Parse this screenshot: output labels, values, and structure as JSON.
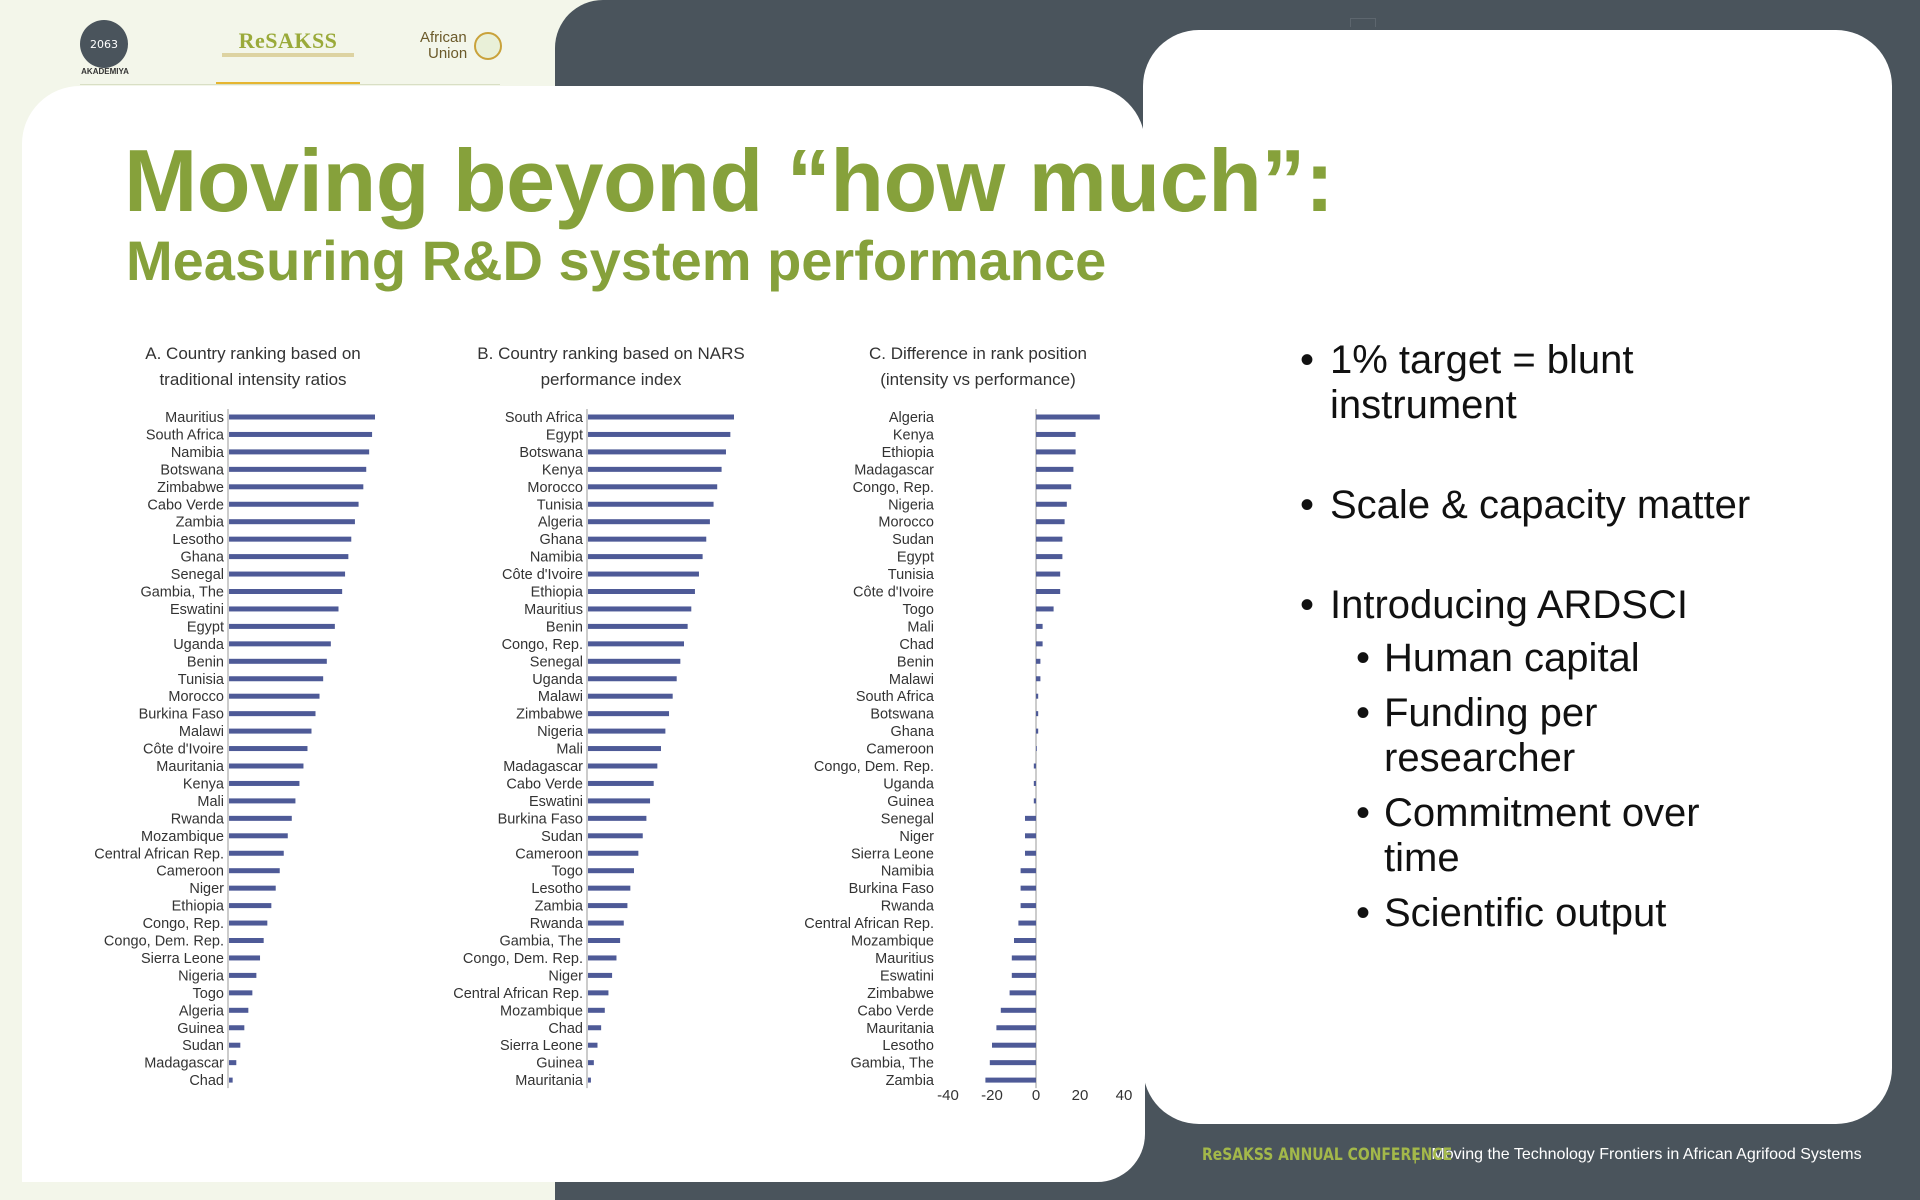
{
  "header": {
    "logos": {
      "akademiya_mark": "2063",
      "akademiya_label": "AKADEMIYA",
      "resakss": "ReSAKSS",
      "african_union": [
        "African",
        "Union"
      ]
    }
  },
  "title": "Moving beyond “how much”:",
  "subtitle": "Measuring R&D system performance",
  "bullets": [
    "1% target = blunt instrument",
    "Scale & capacity matter",
    "Introducing ARDSCI"
  ],
  "sub_bullets": [
    "Human capital",
    "Funding per researcher",
    "Commitment over time",
    "Scientific output"
  ],
  "footer": {
    "conference": "ReSAKSS ANNUAL CONFERENCE",
    "separator": "|",
    "tagline": "Moving the Technology Frontiers in African Agrifood Systems"
  },
  "colors": {
    "accent_green": "#86a13b",
    "bar_blue": "#4e5a97",
    "dark_panel": "#4a545c"
  },
  "chart_data": [
    {
      "type": "bar",
      "orientation": "horizontal",
      "title": [
        "A. Country ranking based on",
        "traditional intensity ratios"
      ],
      "categories": [
        "Mauritius",
        "South Africa",
        "Namibia",
        "Botswana",
        "Zimbabwe",
        "Cabo Verde",
        "Zambia",
        "Lesotho",
        "Ghana",
        "Senegal",
        "Gambia, The",
        "Eswatini",
        "Egypt",
        "Uganda",
        "Benin",
        "Tunisia",
        "Morocco",
        "Burkina Faso",
        "Malawi",
        "Côte d'Ivoire",
        "Mauritania",
        "Kenya",
        "Mali",
        "Rwanda",
        "Mozambique",
        "Central African Rep.",
        "Cameroon",
        "Niger",
        "Ethiopia",
        "Congo, Rep.",
        "Congo, Dem. Rep.",
        "Sierra Leone",
        "Nigeria",
        "Togo",
        "Algeria",
        "Guinea",
        "Sudan",
        "Madagascar",
        "Chad"
      ],
      "values": [
        40,
        39.2,
        38.4,
        37.6,
        36.8,
        35.5,
        34.5,
        33.5,
        32.7,
        31.8,
        31,
        30,
        29,
        27.9,
        26.8,
        25.8,
        24.8,
        23.7,
        22.6,
        21.5,
        20.4,
        19.3,
        18.2,
        17.2,
        16.1,
        15.0,
        13.9,
        12.8,
        11.6,
        10.5,
        9.5,
        8.5,
        7.5,
        6.4,
        5.3,
        4.2,
        3.1,
        2.0,
        1.0
      ]
    },
    {
      "type": "bar",
      "orientation": "horizontal",
      "title": [
        "B. Country ranking based on NARS",
        "performance index"
      ],
      "categories": [
        "South Africa",
        "Egypt",
        "Botswana",
        "Kenya",
        "Morocco",
        "Tunisia",
        "Algeria",
        "Ghana",
        "Namibia",
        "Côte d'Ivoire",
        "Ethiopia",
        "Mauritius",
        "Benin",
        "Congo, Rep.",
        "Senegal",
        "Uganda",
        "Malawi",
        "Zimbabwe",
        "Nigeria",
        "Mali",
        "Madagascar",
        "Cabo Verde",
        "Eswatini",
        "Burkina Faso",
        "Sudan",
        "Cameroon",
        "Togo",
        "Lesotho",
        "Zambia",
        "Rwanda",
        "Gambia, The",
        "Congo, Dem. Rep.",
        "Niger",
        "Central African Rep.",
        "Mozambique",
        "Chad",
        "Sierra Leone",
        "Guinea",
        "Mauritania"
      ],
      "values": [
        40,
        39,
        37.8,
        36.6,
        35.4,
        34.4,
        33.4,
        32.4,
        31.4,
        30.4,
        29.3,
        28.3,
        27.3,
        26.3,
        25.3,
        24.3,
        23.2,
        22.2,
        21.2,
        20.0,
        19.0,
        18.0,
        17.0,
        16.0,
        15.0,
        13.8,
        12.6,
        11.6,
        10.8,
        9.8,
        8.8,
        7.8,
        6.6,
        5.6,
        4.6,
        3.6,
        2.6,
        1.6,
        0.8
      ]
    },
    {
      "type": "bar",
      "orientation": "horizontal",
      "title": [
        "C. Difference in rank position",
        "(intensity vs performance)"
      ],
      "categories": [
        "Algeria",
        "Kenya",
        "Ethiopia",
        "Madagascar",
        "Congo, Rep.",
        "Nigeria",
        "Morocco",
        "Sudan",
        "Egypt",
        "Tunisia",
        "Côte d'Ivoire",
        "Togo",
        "Mali",
        "Chad",
        "Benin",
        "Malawi",
        "South Africa",
        "Botswana",
        "Ghana",
        "Cameroon",
        "Congo, Dem. Rep.",
        "Uganda",
        "Guinea",
        "Senegal",
        "Niger",
        "Sierra Leone",
        "Namibia",
        "Burkina Faso",
        "Rwanda",
        "Central African Rep.",
        "Mozambique",
        "Mauritius",
        "Eswatini",
        "Zimbabwe",
        "Cabo Verde",
        "Mauritania",
        "Lesotho",
        "Gambia, The",
        "Zambia"
      ],
      "values": [
        29,
        18,
        18,
        17,
        16,
        14,
        13,
        12,
        12,
        11,
        11,
        8,
        3,
        3,
        2,
        2,
        1,
        1,
        1,
        0,
        -1,
        -1,
        -1,
        -5,
        -5,
        -5,
        -7,
        -7,
        -7,
        -8,
        -10,
        -11,
        -11,
        -12,
        -16,
        -18,
        -20,
        -21,
        -23
      ],
      "xlim": [
        -40,
        40
      ],
      "xticks": [
        "-40",
        "-20",
        "0",
        "20",
        "40"
      ]
    }
  ]
}
